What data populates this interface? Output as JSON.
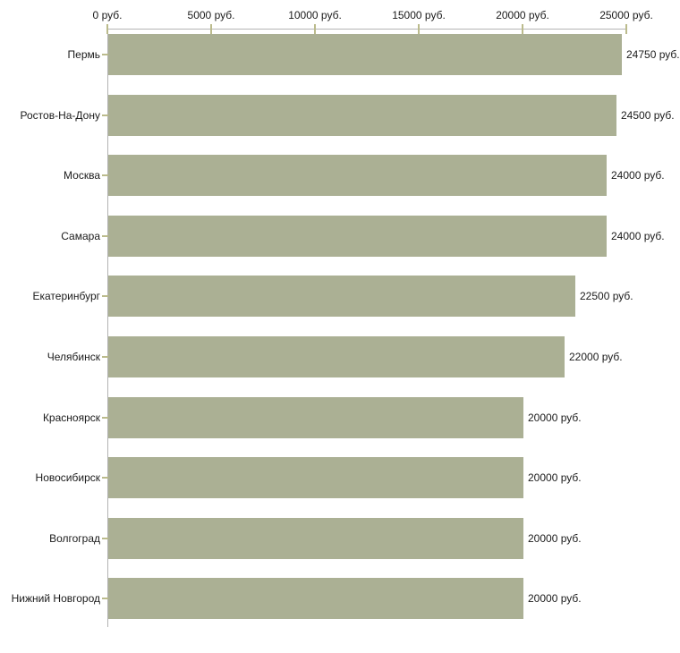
{
  "chart_data": {
    "type": "bar",
    "orientation": "horizontal",
    "title": "",
    "xlabel": "",
    "ylabel": "",
    "unit": "руб.",
    "categories": [
      "Пермь",
      "Ростов-На-Дону",
      "Москва",
      "Самара",
      "Екатеринбург",
      "Челябинск",
      "Красноярск",
      "Новосибирск",
      "Волгоград",
      "Нижний Новгород"
    ],
    "values": [
      24750,
      24500,
      24000,
      24000,
      22500,
      22000,
      20000,
      20000,
      20000,
      20000
    ],
    "value_labels": [
      "24750 руб.",
      "24500 руб.",
      "24000 руб.",
      "24000 руб.",
      "22500 руб.",
      "22000 руб.",
      "20000 руб.",
      "20000 руб.",
      "20000 руб.",
      "20000 руб."
    ],
    "x_ticks": [
      0,
      5000,
      10000,
      15000,
      20000,
      25000
    ],
    "x_tick_labels": [
      "0 руб.",
      "5000 руб.",
      "10000 руб.",
      "15000 руб.",
      "20000 руб.",
      "25000 руб."
    ],
    "xlim": [
      0,
      25000
    ],
    "x_axis_position": "top",
    "grid": "off",
    "legend": "none",
    "colors": {
      "bar": "#abb094",
      "axis_line": "#b4b4b4",
      "tick_mark": "#bbbb8c",
      "text": "#1b1b1b",
      "background": "#ffffff"
    }
  }
}
